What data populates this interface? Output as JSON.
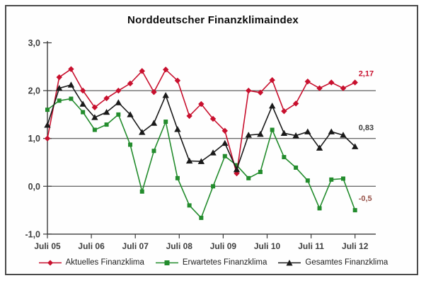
{
  "title": "Norddeutscher Finanzklimaindex",
  "chart_data": {
    "type": "line",
    "title": "Norddeutscher Finanzklimaindex",
    "xlabel": "",
    "ylabel": "",
    "ylim": [
      -1.0,
      3.0
    ],
    "grid": "horizontal",
    "legend_position": "bottom",
    "categories": [
      "Juli 05",
      "Juli 06",
      "Juli 07",
      "Juli 08",
      "Juli 09",
      "Juli 10",
      "Juli 11",
      "Juli 12"
    ],
    "y_ticks": [
      {
        "value": 3,
        "label": "3,0"
      },
      {
        "value": 2,
        "label": "2,0"
      },
      {
        "value": 1,
        "label": "1,0"
      },
      {
        "value": 0,
        "label": "0,0"
      },
      {
        "value": -1,
        "label": "-1,0"
      }
    ],
    "gridlines_at": [
      2,
      1,
      0
    ],
    "points_per_series": 27,
    "series": [
      {
        "name": "Aktuelles Finanzklima",
        "marker": "diamond",
        "color": "#C8102E",
        "values": [
          1.0,
          2.28,
          2.45,
          2.0,
          1.65,
          1.84,
          2.0,
          2.15,
          2.41,
          1.97,
          2.44,
          2.21,
          1.47,
          1.72,
          1.41,
          1.16,
          0.27,
          2.0,
          1.96,
          2.22,
          1.57,
          1.73,
          2.19,
          2.05,
          2.17,
          2.05,
          2.17
        ],
        "end_label": {
          "text": "2,17",
          "color": "#C8102E"
        }
      },
      {
        "name": "Erwartetes Finanzklima",
        "marker": "square",
        "color": "#238C2D",
        "values": [
          1.6,
          1.79,
          1.83,
          1.55,
          1.18,
          1.29,
          1.5,
          0.87,
          -0.11,
          0.74,
          1.35,
          0.17,
          -0.4,
          -0.66,
          0.0,
          0.63,
          0.44,
          0.17,
          0.3,
          1.18,
          0.61,
          0.39,
          0.12,
          -0.46,
          0.14,
          0.16,
          -0.5
        ],
        "end_label": {
          "text": "-0,5",
          "color": "#965046"
        }
      },
      {
        "name": "Gesamtes Finanzklima",
        "marker": "triangle",
        "color": "#1A1A1A",
        "values": [
          1.28,
          2.05,
          2.12,
          1.72,
          1.44,
          1.55,
          1.75,
          1.5,
          1.13,
          1.32,
          1.9,
          1.19,
          0.53,
          0.52,
          0.7,
          0.9,
          0.35,
          1.07,
          1.09,
          1.68,
          1.11,
          1.06,
          1.14,
          0.8,
          1.14,
          1.07,
          0.83
        ],
        "end_label": {
          "text": "0,83",
          "color": "#3C3C3C"
        }
      }
    ]
  },
  "legend": {
    "items": [
      {
        "label": "Aktuelles Finanzklima"
      },
      {
        "label": "Erwartetes Finanzklima"
      },
      {
        "label": "Gesamtes Finanzklima"
      }
    ]
  }
}
